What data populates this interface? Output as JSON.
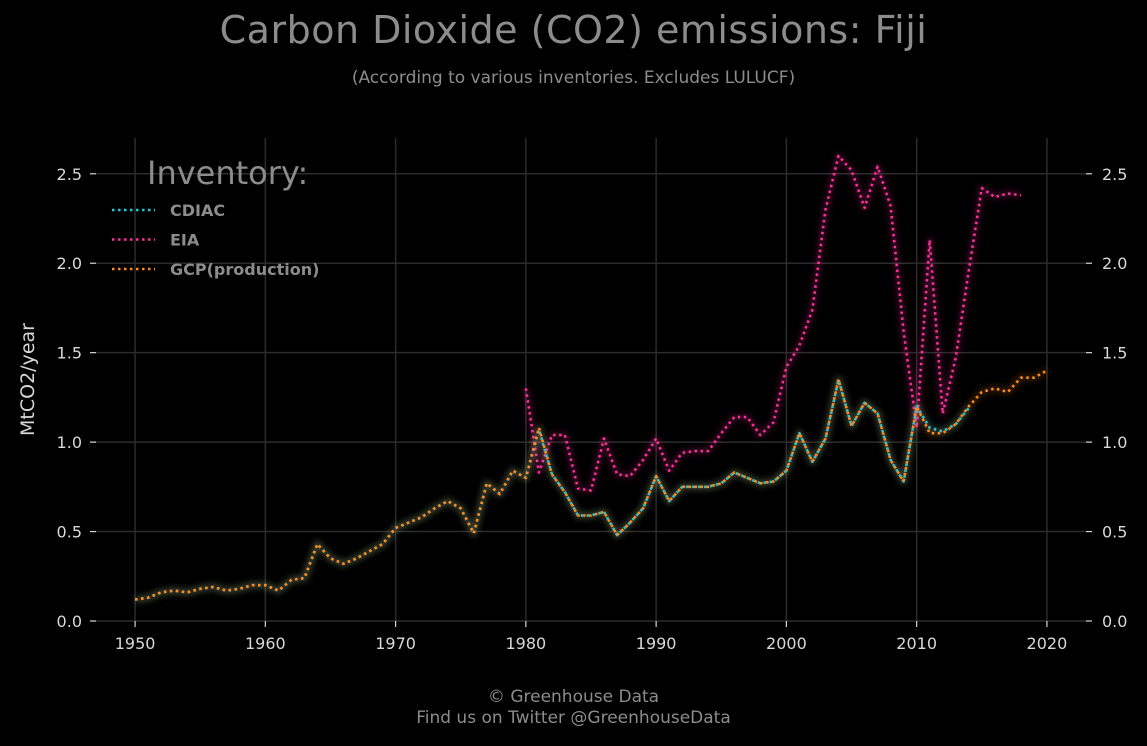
{
  "header": {
    "title": "Carbon Dioxide (CO2) emissions: Fiji",
    "subtitle": "(According to various inventories. Excludes LULUCF)"
  },
  "footer": {
    "copyright": "© Greenhouse Data",
    "twitter": "Find us on Twitter @GreenhouseData"
  },
  "colors": {
    "background": "#000000",
    "grid": "#2c2c2c",
    "text": "#9a9a9a",
    "tick_text": "#d8d8d8"
  },
  "chart_data": {
    "type": "line",
    "title": "Carbon Dioxide (CO2) emissions: Fiji",
    "subtitle": "(According to various inventories. Excludes LULUCF)",
    "ylabel": "MtCO2/year",
    "xlabel": "",
    "xlim": [
      1947,
      2023
    ],
    "ylim": [
      0,
      2.7
    ],
    "x_ticks": [
      1950,
      1960,
      1970,
      1980,
      1990,
      2000,
      2010,
      2020
    ],
    "y_ticks": [
      0.0,
      0.5,
      1.0,
      1.5,
      2.0,
      2.5
    ],
    "y_tick_labels": [
      "0.0",
      "0.5",
      "1.0",
      "1.5",
      "2.0",
      "2.5"
    ],
    "grid": true,
    "legend_title": "Inventory:",
    "legend_position": "top-left",
    "line_style": "dotted",
    "series": [
      {
        "name": "CDIAC",
        "color": "#1ec8d8",
        "x": [
          1950,
          1951,
          1952,
          1953,
          1954,
          1955,
          1956,
          1957,
          1958,
          1959,
          1960,
          1961,
          1962,
          1963,
          1964,
          1965,
          1966,
          1967,
          1968,
          1969,
          1970,
          1971,
          1972,
          1973,
          1974,
          1975,
          1976,
          1977,
          1978,
          1979,
          1980,
          1981,
          1982,
          1983,
          1984,
          1985,
          1986,
          1987,
          1988,
          1989,
          1990,
          1991,
          1992,
          1993,
          1994,
          1995,
          1996,
          1997,
          1998,
          1999,
          2000,
          2001,
          2002,
          2003,
          2004,
          2005,
          2006,
          2007,
          2008,
          2009,
          2010,
          2011,
          2012,
          2013,
          2014
        ],
        "values": [
          0.12,
          0.13,
          0.16,
          0.17,
          0.16,
          0.18,
          0.19,
          0.17,
          0.18,
          0.2,
          0.2,
          0.17,
          0.23,
          0.24,
          0.43,
          0.35,
          0.32,
          0.35,
          0.39,
          0.43,
          0.52,
          0.55,
          0.58,
          0.63,
          0.67,
          0.63,
          0.49,
          0.77,
          0.71,
          0.84,
          0.8,
          1.07,
          0.82,
          0.72,
          0.59,
          0.59,
          0.61,
          0.48,
          0.55,
          0.63,
          0.81,
          0.67,
          0.75,
          0.75,
          0.75,
          0.77,
          0.83,
          0.8,
          0.77,
          0.78,
          0.84,
          1.05,
          0.89,
          1.02,
          1.35,
          1.09,
          1.22,
          1.16,
          0.9,
          0.78,
          1.2,
          1.08,
          1.06,
          1.1,
          1.19
        ]
      },
      {
        "name": "EIA",
        "color": "#ff2d9a",
        "x": [
          1980,
          1981,
          1982,
          1983,
          1984,
          1985,
          1986,
          1987,
          1988,
          1989,
          1990,
          1991,
          1992,
          1993,
          1994,
          1995,
          1996,
          1997,
          1998,
          1999,
          2000,
          2001,
          2002,
          2003,
          2004,
          2005,
          2006,
          2007,
          2008,
          2009,
          2010,
          2011,
          2012,
          2013,
          2014,
          2015,
          2016,
          2017,
          2018
        ],
        "values": [
          1.3,
          0.83,
          1.04,
          1.04,
          0.74,
          0.73,
          1.02,
          0.82,
          0.81,
          0.9,
          1.02,
          0.84,
          0.94,
          0.95,
          0.95,
          1.05,
          1.14,
          1.14,
          1.04,
          1.11,
          1.42,
          1.54,
          1.74,
          2.3,
          2.6,
          2.52,
          2.31,
          2.54,
          2.32,
          1.62,
          1.08,
          2.13,
          1.16,
          1.47,
          1.96,
          2.42,
          2.37,
          2.39,
          2.38
        ]
      },
      {
        "name": "GCP(production)",
        "color": "#ff8c1a",
        "x": [
          1950,
          1951,
          1952,
          1953,
          1954,
          1955,
          1956,
          1957,
          1958,
          1959,
          1960,
          1961,
          1962,
          1963,
          1964,
          1965,
          1966,
          1967,
          1968,
          1969,
          1970,
          1971,
          1972,
          1973,
          1974,
          1975,
          1976,
          1977,
          1978,
          1979,
          1980,
          1981,
          1982,
          1983,
          1984,
          1985,
          1986,
          1987,
          1988,
          1989,
          1990,
          1991,
          1992,
          1993,
          1994,
          1995,
          1996,
          1997,
          1998,
          1999,
          2000,
          2001,
          2002,
          2003,
          2004,
          2005,
          2006,
          2007,
          2008,
          2009,
          2010,
          2011,
          2012,
          2013,
          2014,
          2015,
          2016,
          2017,
          2018,
          2019,
          2020
        ],
        "values": [
          0.12,
          0.13,
          0.16,
          0.17,
          0.16,
          0.18,
          0.19,
          0.17,
          0.18,
          0.2,
          0.2,
          0.17,
          0.23,
          0.24,
          0.43,
          0.35,
          0.32,
          0.35,
          0.39,
          0.43,
          0.52,
          0.55,
          0.58,
          0.63,
          0.67,
          0.63,
          0.49,
          0.77,
          0.71,
          0.84,
          0.8,
          1.08,
          0.82,
          0.72,
          0.59,
          0.59,
          0.61,
          0.48,
          0.55,
          0.63,
          0.81,
          0.67,
          0.75,
          0.75,
          0.75,
          0.77,
          0.83,
          0.8,
          0.77,
          0.78,
          0.84,
          1.05,
          0.89,
          1.02,
          1.35,
          1.09,
          1.22,
          1.16,
          0.9,
          0.78,
          1.2,
          1.05,
          1.05,
          1.1,
          1.2,
          1.28,
          1.3,
          1.28,
          1.36,
          1.36,
          1.4
        ]
      }
    ]
  }
}
